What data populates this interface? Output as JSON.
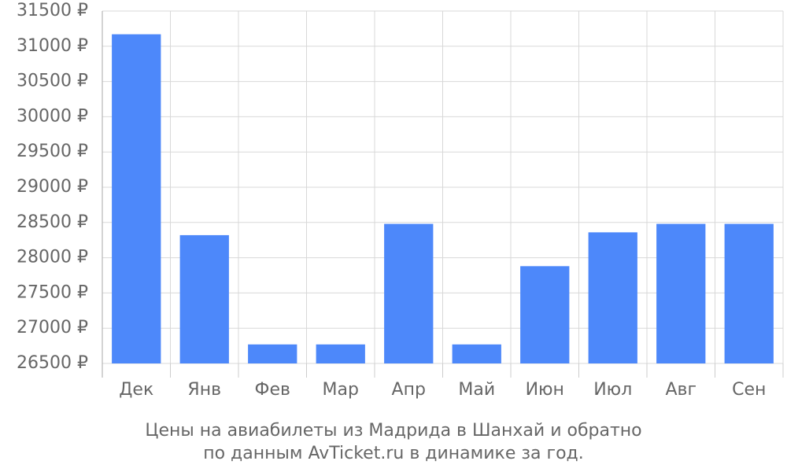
{
  "chart_data": {
    "type": "bar",
    "caption": [
      "Цены на авиабилеты из Мадрида в Шанхай и обратно",
      "по данным AvTicket.ru в динамике за год."
    ],
    "categories": [
      "Дек",
      "Янв",
      "Фев",
      "Мар",
      "Апр",
      "Май",
      "Июн",
      "Июл",
      "Авг",
      "Сен"
    ],
    "values": [
      31170,
      28320,
      26770,
      26770,
      28480,
      26770,
      27880,
      28360,
      28480,
      28480
    ],
    "color": "#4d88fa",
    "ylim": [
      26500,
      31500
    ],
    "yticks": [
      {
        "value": 26500,
        "label": "26500 ₽"
      },
      {
        "value": 27000,
        "label": "27000 ₽"
      },
      {
        "value": 27500,
        "label": "27500 ₽"
      },
      {
        "value": 28000,
        "label": "28000 ₽"
      },
      {
        "value": 28500,
        "label": "28500 ₽"
      },
      {
        "value": 29000,
        "label": "29000 ₽"
      },
      {
        "value": 29500,
        "label": "29500 ₽"
      },
      {
        "value": 30000,
        "label": "30000 ₽"
      },
      {
        "value": 30500,
        "label": "30500 ₽"
      },
      {
        "value": 31000,
        "label": "31000 ₽"
      },
      {
        "value": 31500,
        "label": "31500 ₽"
      }
    ],
    "grid": true
  }
}
